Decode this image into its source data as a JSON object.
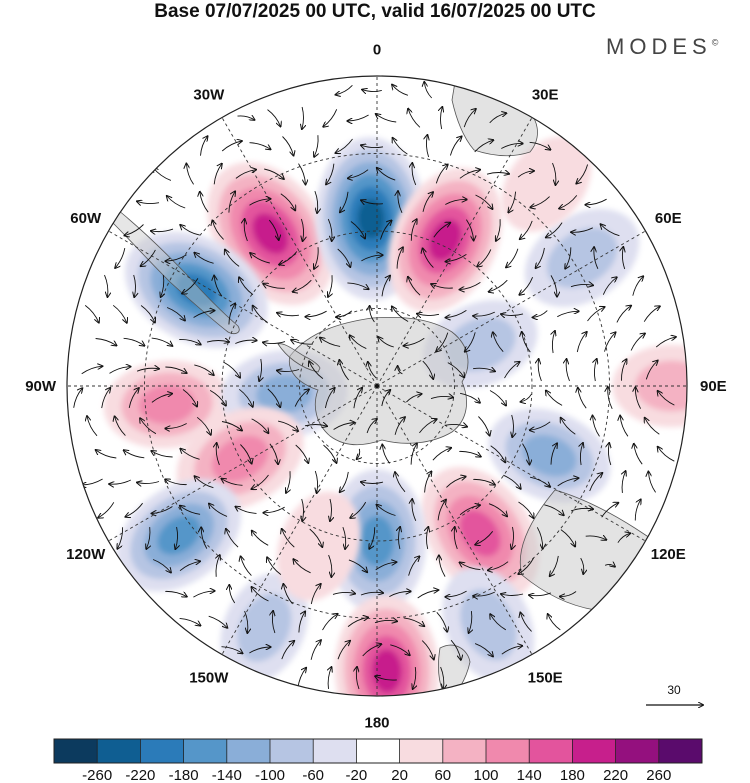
{
  "title": "Base 07/07/2025 00 UTC, valid 16/07/2025 00 UTC",
  "brand": {
    "text": "MODES",
    "mark": "©"
  },
  "map": {
    "projection": "south-polar-stereographic",
    "longitude_labels": [
      {
        "text": "0",
        "lon": 0
      },
      {
        "text": "30E",
        "lon": 30
      },
      {
        "text": "60E",
        "lon": 60
      },
      {
        "text": "90E",
        "lon": 90
      },
      {
        "text": "120E",
        "lon": 120
      },
      {
        "text": "150E",
        "lon": 150
      },
      {
        "text": "180",
        "lon": 180
      },
      {
        "text": "150W",
        "lon": -150
      },
      {
        "text": "120W",
        "lon": -120
      },
      {
        "text": "90W",
        "lon": -90
      },
      {
        "text": "60W",
        "lon": -60
      },
      {
        "text": "30W",
        "lon": -30
      }
    ],
    "reference_vector": {
      "text": "30"
    },
    "anomaly_centers": [
      {
        "lon": -35,
        "r": 0.6,
        "value": 220
      },
      {
        "lon": -2,
        "r": 0.54,
        "value": -240
      },
      {
        "lon": 25,
        "r": 0.52,
        "value": 200
      },
      {
        "lon": -62,
        "r": 0.66,
        "value": -200
      },
      {
        "lon": 58,
        "r": 0.78,
        "value": -100
      },
      {
        "lon": 68,
        "r": 0.36,
        "value": -80
      },
      {
        "lon": 90,
        "r": 0.95,
        "value": 80
      },
      {
        "lon": -95,
        "r": 0.68,
        "value": 110
      },
      {
        "lon": -95,
        "r": 0.3,
        "value": -110
      },
      {
        "lon": -118,
        "r": 0.5,
        "value": 140
      },
      {
        "lon": 112,
        "r": 0.6,
        "value": -110
      },
      {
        "lon": 145,
        "r": 0.58,
        "value": 180
      },
      {
        "lon": -127,
        "r": 0.8,
        "value": -150
      },
      {
        "lon": 180,
        "r": 0.5,
        "value": -170
      },
      {
        "lon": 178,
        "r": 0.92,
        "value": 200
      },
      {
        "lon": 155,
        "r": 0.85,
        "value": -90
      },
      {
        "lon": -155,
        "r": 0.86,
        "value": -70
      },
      {
        "lon": -160,
        "r": 0.55,
        "value": 60
      },
      {
        "lon": 100,
        "r": 0.3,
        "value": 20
      },
      {
        "lon": 40,
        "r": 0.85,
        "value": 40
      }
    ]
  },
  "colorbar": {
    "ticks": [
      "-260",
      "-220",
      "-180",
      "-140",
      "-100",
      "-60",
      "-20",
      "20",
      "60",
      "100",
      "140",
      "180",
      "220",
      "260"
    ],
    "colors": [
      "#0c3a5e",
      "#0f5e92",
      "#2b7bb9",
      "#5596c9",
      "#8aaed8",
      "#b6c5e3",
      "#dedff0",
      "#ffffff",
      "#f8dce0",
      "#f4b2c3",
      "#f089ad",
      "#e3549d",
      "#c71f8c",
      "#94107e",
      "#5a0b6c"
    ]
  }
}
